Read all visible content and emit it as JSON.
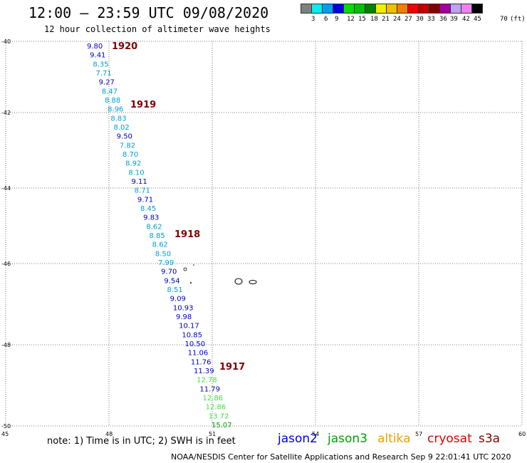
{
  "header": {
    "title": "12:00 – 23:59 UTC 09/08/2020",
    "subtitle": "12 hour collection of altimeter wave heights"
  },
  "legend": {
    "colors": [
      "#808080",
      "#00f0f0",
      "#00a0f0",
      "#0000e0",
      "#00e000",
      "#00c000",
      "#008000",
      "#f0f000",
      "#f0c000",
      "#f08000",
      "#f00000",
      "#c00000",
      "#800000",
      "#a000a0",
      "#c0a0f0",
      "#f080f0",
      "#000000"
    ],
    "labels": [
      "3",
      "6",
      "9",
      "12",
      "15",
      "18",
      "21",
      "24",
      "27",
      "30",
      "33",
      "36",
      "39",
      "42",
      "45",
      "70",
      "(ft)"
    ]
  },
  "axes": {
    "lat_labels": [
      "-40",
      "-42",
      "-44",
      "-46",
      "-48",
      "-50"
    ],
    "lon_labels": [
      "45",
      "48",
      "51",
      "54",
      "57",
      "60"
    ]
  },
  "passes": [
    "1920",
    "1919",
    "1918",
    "1917"
  ],
  "observations": [
    {
      "v": "9.80",
      "c": "#0000c0"
    },
    {
      "v": "9.41",
      "c": "#0000c0"
    },
    {
      "v": "8.35",
      "c": "#00a0d0"
    },
    {
      "v": "7.71",
      "c": "#00a0d0"
    },
    {
      "v": "9.27",
      "c": "#0000c0"
    },
    {
      "v": "8.47",
      "c": "#00a0d0"
    },
    {
      "v": "8.88",
      "c": "#00a0d0"
    },
    {
      "v": "8.96",
      "c": "#00a0d0"
    },
    {
      "v": "8.83",
      "c": "#00a0d0"
    },
    {
      "v": "8.02",
      "c": "#00a0d0"
    },
    {
      "v": "9.50",
      "c": "#0000c0"
    },
    {
      "v": "7.82",
      "c": "#00a0d0"
    },
    {
      "v": "8.70",
      "c": "#00a0d0"
    },
    {
      "v": "8.92",
      "c": "#00a0d0"
    },
    {
      "v": "8.10",
      "c": "#00a0d0"
    },
    {
      "v": "9.11",
      "c": "#0000c0"
    },
    {
      "v": "8.71",
      "c": "#00a0d0"
    },
    {
      "v": "9.71",
      "c": "#0000c0"
    },
    {
      "v": "8.45",
      "c": "#00a0d0"
    },
    {
      "v": "9.83",
      "c": "#0000c0"
    },
    {
      "v": "8.62",
      "c": "#00a0d0"
    },
    {
      "v": "8.85",
      "c": "#00a0d0"
    },
    {
      "v": "8.62",
      "c": "#00a0d0"
    },
    {
      "v": "8.50",
      "c": "#00a0d0"
    },
    {
      "v": "7.99",
      "c": "#00a0d0"
    },
    {
      "v": "9.70",
      "c": "#0000c0"
    },
    {
      "v": "9.54",
      "c": "#0000c0"
    },
    {
      "v": "8.51",
      "c": "#00a0d0"
    },
    {
      "v": "9.09",
      "c": "#0000c0"
    },
    {
      "v": "10.93",
      "c": "#0000c0"
    },
    {
      "v": "9.98",
      "c": "#0000c0"
    },
    {
      "v": "10.17",
      "c": "#0000c0"
    },
    {
      "v": "10.85",
      "c": "#0000c0"
    },
    {
      "v": "10.50",
      "c": "#0000c0"
    },
    {
      "v": "11.06",
      "c": "#0000c0"
    },
    {
      "v": "11.76",
      "c": "#0000c0"
    },
    {
      "v": "11.39",
      "c": "#0000c0"
    },
    {
      "v": "12.78",
      "c": "#40e040"
    },
    {
      "v": "11.79",
      "c": "#0000c0"
    },
    {
      "v": "12.86",
      "c": "#40e040"
    },
    {
      "v": "12.86",
      "c": "#40e040"
    },
    {
      "v": "13.72",
      "c": "#40e040"
    },
    {
      "v": "15.07",
      "c": "#00a000"
    }
  ],
  "footer": {
    "note": "note: 1) Time is in UTC; 2) SWH is in feet",
    "satellites": [
      {
        "name": "jason2",
        "color": "#0000e0"
      },
      {
        "name": "jason3",
        "color": "#00a000"
      },
      {
        "name": "altika",
        "color": "#f0a000"
      },
      {
        "name": "cryosat",
        "color": "#e00000"
      },
      {
        "name": "s3a",
        "color": "#800000"
      }
    ],
    "credit": "NOAA/NESDIS Center for Satellite Applications and Research    Sep  9 22:01:41 UTC 2020"
  }
}
